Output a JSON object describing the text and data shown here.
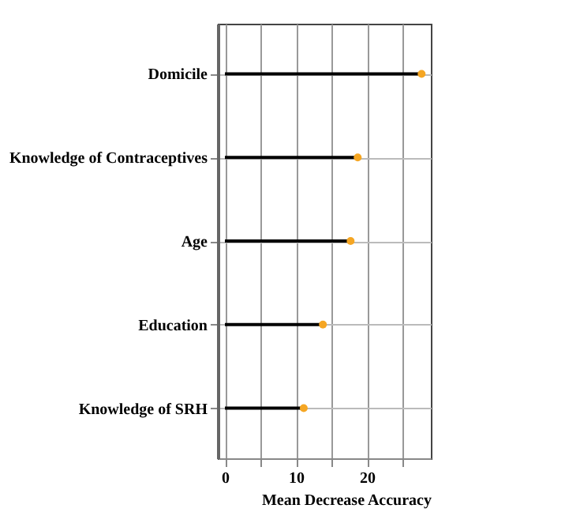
{
  "chart_data": {
    "type": "lollipop",
    "orientation": "horizontal",
    "categories": [
      "Domicile",
      "Knowledge of Contraceptives",
      "Age",
      "Education",
      "Knowledge of SRH"
    ],
    "values": [
      27.7,
      18.7,
      17.7,
      13.8,
      11.1
    ],
    "color": "#f5a623",
    "xlabel": "Mean Decrease Accuracy",
    "xlim": [
      -1,
      29
    ],
    "xticks": [
      0,
      {
        "value": 5,
        "label": null
      },
      10,
      {
        "value": 15,
        "label": null
      },
      20,
      {
        "value": 25,
        "label": null
      }
    ],
    "grid": true,
    "marker": "circle"
  }
}
